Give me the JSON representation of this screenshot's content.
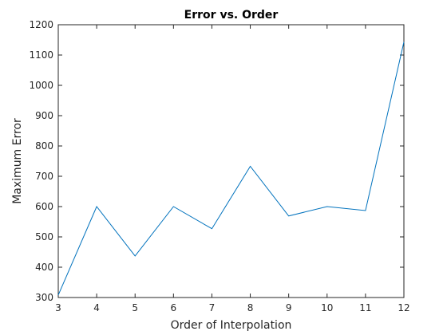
{
  "chart_data": {
    "type": "line",
    "title": "Error vs. Order",
    "xlabel": "Order of Interpolation",
    "ylabel": "Maximum Error",
    "x": [
      3,
      4,
      5,
      6,
      7,
      8,
      9,
      10,
      11,
      12
    ],
    "series": [
      {
        "values": [
          308,
          600,
          437,
          600,
          527,
          733,
          569,
          600,
          587,
          1143
        ],
        "color": "#0072BD"
      }
    ],
    "xlim": [
      3,
      12
    ],
    "ylim": [
      300,
      1200
    ],
    "xticks": [
      "3",
      "4",
      "5",
      "6",
      "7",
      "8",
      "9",
      "10",
      "11",
      "12"
    ],
    "yticks": [
      "300",
      "400",
      "500",
      "600",
      "700",
      "800",
      "900",
      "1000",
      "1100",
      "1200"
    ],
    "grid": false,
    "legend": "none"
  }
}
